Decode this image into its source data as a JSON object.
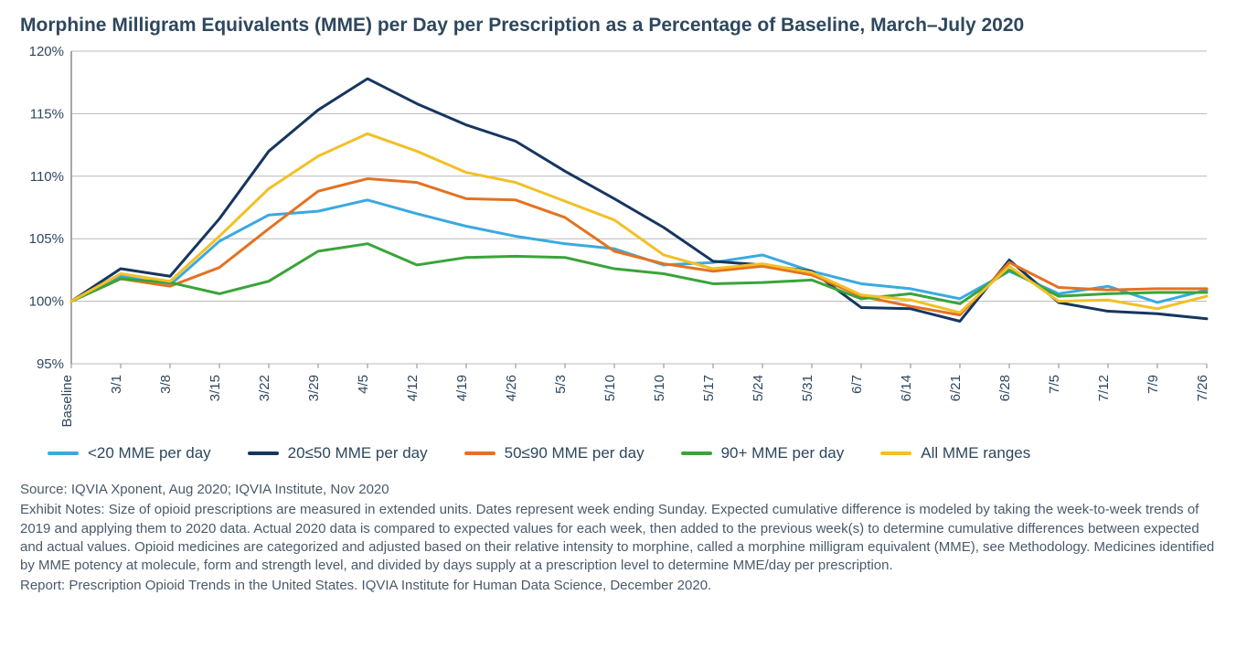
{
  "title": "Morphine Milligram Equivalents (MME) per Day per Prescription as a Percentage of Baseline, March–July 2020",
  "chart": {
    "type": "line",
    "background_color": "#ffffff",
    "grid_color": "#b8b8b8",
    "axis_color": "#888888",
    "ylim": [
      95,
      120
    ],
    "ytick_step": 5,
    "ytick_suffix": "%",
    "tick_font_size": 15,
    "tick_color": "#2e475d",
    "line_width": 3,
    "x_labels": [
      "Baseline",
      "3/1",
      "3/8",
      "3/15",
      "3/22",
      "3/29",
      "4/5",
      "4/12",
      "4/19",
      "4/26",
      "5/3",
      "5/10",
      "5/10",
      "5/17",
      "5/24",
      "5/31",
      "6/7",
      "6/14",
      "6/21",
      "6/28",
      "7/5",
      "7/12",
      "7/9",
      "7/26"
    ],
    "series": [
      {
        "name": "<20 MME per day",
        "color": "#3ba9e0",
        "values": [
          100,
          102.0,
          101.3,
          104.8,
          106.9,
          107.2,
          108.1,
          107.0,
          106.0,
          105.2,
          104.6,
          104.2,
          102.9,
          103.1,
          103.7,
          102.4,
          101.4,
          101.0,
          100.2,
          102.4,
          100.6,
          101.2,
          99.9,
          100.9
        ]
      },
      {
        "name": "20≤50 MME per day",
        "color": "#16365f",
        "values": [
          100,
          102.6,
          102.0,
          106.6,
          112.0,
          115.3,
          117.8,
          115.8,
          114.1,
          112.8,
          110.4,
          108.2,
          105.9,
          103.2,
          102.9,
          102.4,
          99.5,
          99.4,
          98.4,
          103.3,
          99.9,
          99.2,
          99.0,
          98.6
        ]
      },
      {
        "name": "50≤90 MME per day",
        "color": "#e37222",
        "values": [
          100,
          101.8,
          101.2,
          102.7,
          105.8,
          108.8,
          109.8,
          109.5,
          108.2,
          108.1,
          106.7,
          104.0,
          103.0,
          102.4,
          102.8,
          102.1,
          100.4,
          99.6,
          98.9,
          103.1,
          101.1,
          100.9,
          101.0,
          101.0
        ]
      },
      {
        "name": "90+ MME per day",
        "color": "#3aa43a",
        "values": [
          100,
          101.8,
          101.5,
          100.6,
          101.6,
          104.0,
          104.6,
          102.9,
          103.5,
          103.6,
          103.5,
          102.6,
          102.2,
          101.4,
          101.5,
          101.7,
          100.2,
          100.6,
          99.8,
          102.5,
          100.4,
          100.6,
          100.7,
          100.7
        ]
      },
      {
        "name": "All MME ranges",
        "color": "#f2c026",
        "values": [
          100,
          102.2,
          101.6,
          105.2,
          109.0,
          111.6,
          113.4,
          112.0,
          110.3,
          109.5,
          108.0,
          106.5,
          103.7,
          102.6,
          103.0,
          102.3,
          100.5,
          100.1,
          99.1,
          102.8,
          100.0,
          100.1,
          99.4,
          100.4
        ]
      }
    ]
  },
  "legend": {
    "items": [
      {
        "label": "<20 MME per day",
        "color": "#3ba9e0"
      },
      {
        "label": "20≤50 MME per day",
        "color": "#16365f"
      },
      {
        "label": "50≤90 MME per day",
        "color": "#e37222"
      },
      {
        "label": "90+ MME per day",
        "color": "#3aa43a"
      },
      {
        "label": "All MME ranges",
        "color": "#f2c026"
      }
    ]
  },
  "footer": {
    "source": "Source: IQVIA Xponent, Aug 2020; IQVIA Institute, Nov 2020",
    "notes": "Exhibit Notes: Size of opioid prescriptions are measured in extended units. Dates represent week ending Sunday. Expected cumulative difference is modeled by taking the week-to-week trends of 2019 and applying them to 2020 data. Actual 2020 data is compared to expected values for each week, then added to the previous week(s) to determine cumulative differences between expected and actual values. Opioid medicines are categorized and adjusted based on their relative intensity to morphine, called a morphine milligram equivalent (MME), see Methodology. Medicines identified by MME potency at molecule, form and strength level, and divided by days supply at a prescription level to determine MME/day per prescription.",
    "report": "Report: Prescription Opioid Trends in the United States. IQVIA Institute for Human Data Science, December 2020."
  }
}
